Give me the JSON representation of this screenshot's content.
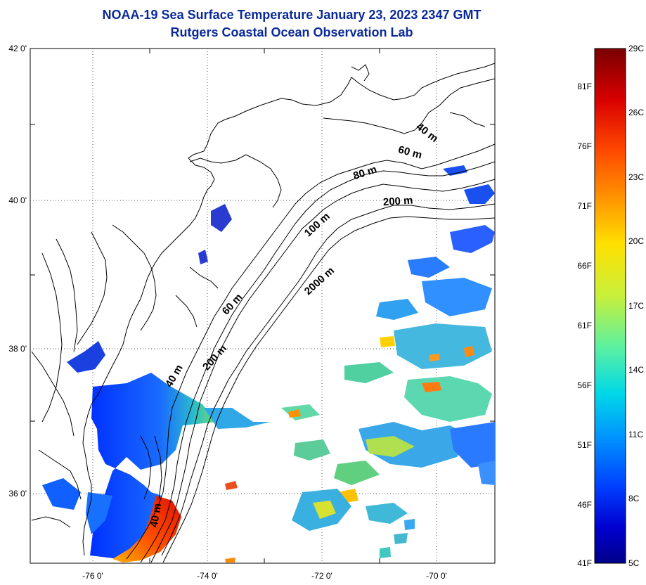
{
  "header": {
    "title_line1": "NOAA-19 Sea Surface Temperature January 23, 2023 2347 GMT",
    "title_line2": "Rutgers Coastal Ocean Observation Lab"
  },
  "map": {
    "lon_ticks": [
      "-76 0'",
      "-74 0'",
      "-72 0'",
      "-70 0'"
    ],
    "lat_ticks": [
      "42 0'",
      "40 0'",
      "38 0'",
      "36 0'"
    ],
    "depth_labels": [
      "40 m",
      "60 m",
      "80 m",
      "200 m",
      "100 m",
      "2000 m",
      "60 m",
      "200 m",
      "40 m",
      "40 m"
    ]
  },
  "colorbar": {
    "celsius_labels": [
      "29C",
      "26C",
      "23C",
      "20C",
      "17C",
      "14C",
      "11C",
      "8C",
      "5C"
    ],
    "fahrenheit_labels": [
      "81F",
      "76F",
      "71F",
      "66F",
      "61F",
      "56F",
      "51F",
      "46F",
      "41F"
    ],
    "colors": [
      "#7a0000",
      "#d90000",
      "#ff4a00",
      "#ff9c00",
      "#ffe000",
      "#c8f03a",
      "#5cf0a0",
      "#00d8e8",
      "#0090ff",
      "#0040ff",
      "#0000d0",
      "#00008a"
    ]
  }
}
